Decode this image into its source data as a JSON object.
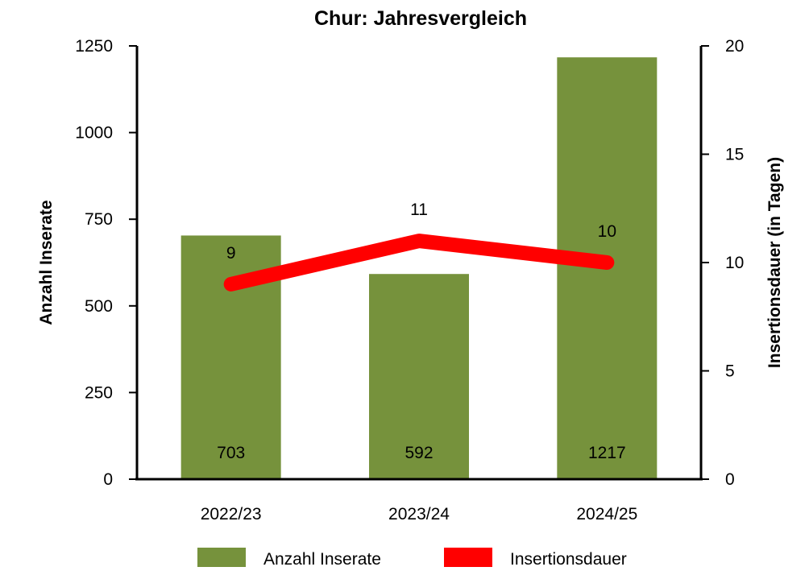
{
  "chart_data": {
    "type": "bar",
    "title": "Chur: Jahresvergleich",
    "categories": [
      "2022/23",
      "2023/24",
      "2024/25"
    ],
    "ylabel": "Anzahl Inserate",
    "y2label": "Insertionsdauer (in Tagen)",
    "ylim": [
      0,
      1250
    ],
    "y2lim": [
      0,
      20
    ],
    "yticks": [
      "0",
      "250",
      "500",
      "750",
      "1000",
      "1250"
    ],
    "y2ticks": [
      "0",
      "5",
      "10",
      "15",
      "20"
    ],
    "grid": false,
    "legend_position": "bottom",
    "series": [
      {
        "name": "Anzahl Inserate",
        "type": "bar",
        "axis": "left",
        "color": "#76923c",
        "values": [
          703,
          592,
          1217
        ]
      },
      {
        "name": "Insertionsdauer",
        "type": "line",
        "axis": "right",
        "color": "#ff0000",
        "values": [
          9,
          11,
          10
        ]
      }
    ]
  }
}
